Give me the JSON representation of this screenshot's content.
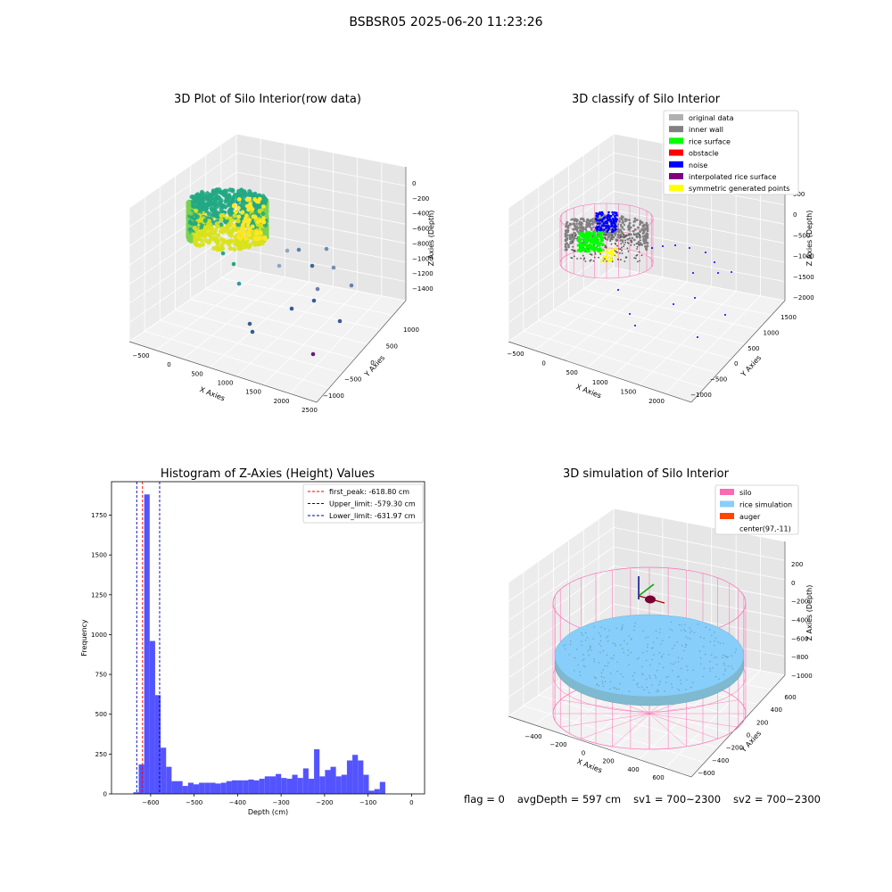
{
  "figure_title": "BSBSR05 2025-06-20 11:23:26",
  "footer": {
    "flag": "flag = 0",
    "avg_depth": "avgDepth = 597 cm",
    "sv1": "sv1 = 700~2300",
    "sv2": "sv2 = 700~2300"
  },
  "colors": {
    "histogram_bar": "#4b4bff",
    "peak_line": "#ff0000",
    "limit_line": "#0000aa",
    "silo_wire": "#ff69b4",
    "rice": "#87cefa",
    "auger": "#ff4500",
    "original_data": "#b0b0b0",
    "inner_wall": "#808080",
    "rice_surface": "#00ff00",
    "obstacle": "#ff0000",
    "noise": "#0000ff",
    "interpolated": "#800080",
    "symmetric": "#ffff00"
  },
  "chart_data": [
    {
      "type": "scatter",
      "subtype": "3d",
      "title": "3D Plot of Silo Interior(row data)",
      "xlabel": "X Axies",
      "ylabel": "Y Axies",
      "zlabel": "Z Axies (Depth)",
      "x_ticks": [
        "−500",
        "0",
        "500",
        "1000",
        "1500",
        "2000",
        "2500"
      ],
      "y_ticks": [
        "−1000",
        "−500",
        "0",
        "500",
        "1000"
      ],
      "z_ticks": [
        "0",
        "−200",
        "−400",
        "−600",
        "−800",
        "−1000",
        "−1200",
        "−1400"
      ],
      "xlim": [
        -600,
        2500
      ],
      "ylim": [
        -1200,
        1200
      ],
      "zlim": [
        -1500,
        100
      ]
    },
    {
      "type": "scatter",
      "subtype": "3d",
      "title": "3D classify of Silo Interior",
      "xlabel": "X Axies",
      "ylabel": "Y Axies",
      "zlabel": "Z Axies (Depth)",
      "x_ticks": [
        "−500",
        "0",
        "500",
        "1000",
        "1500",
        "2000"
      ],
      "y_ticks": [
        "−1000",
        "−500",
        "0",
        "500",
        "1000",
        "1500"
      ],
      "z_ticks": [
        "500",
        "0",
        "−500",
        "−1000",
        "−1500",
        "−2000"
      ],
      "legend": [
        "original data",
        "inner wall",
        "rice surface",
        "obstacle",
        "noise",
        "interpolated rice surface",
        "symmetric generated points"
      ],
      "legend_position": "top-right"
    },
    {
      "type": "bar",
      "subtype": "histogram",
      "title": "Histogram of Z-Axies (Height) Values",
      "xlabel": "Depth (cm)",
      "ylabel": "Frequency",
      "xlim": [
        -690,
        30
      ],
      "ylim": [
        0,
        1960
      ],
      "x_ticks": [
        -600,
        -500,
        -400,
        -300,
        -200,
        -100,
        0
      ],
      "y_ticks": [
        0,
        250,
        500,
        750,
        1000,
        1250,
        1500,
        1750
      ],
      "bin_width": 12.6,
      "bin_start": -640,
      "counts": [
        10,
        185,
        1880,
        960,
        620,
        290,
        170,
        80,
        80,
        50,
        70,
        60,
        70,
        70,
        70,
        65,
        70,
        80,
        85,
        85,
        85,
        90,
        85,
        95,
        110,
        110,
        125,
        100,
        95,
        120,
        100,
        160,
        95,
        280,
        110,
        150,
        170,
        110,
        120,
        210,
        245,
        210,
        120,
        20,
        30,
        75
      ],
      "lines": [
        {
          "label": "first_peak: -618.80 cm",
          "x": -618.8,
          "style": "dashed",
          "color": "#ff0000"
        },
        {
          "label": "Upper_limit: -579.30 cm",
          "x": -579.3,
          "style": "dashed",
          "color": "#0000aa"
        },
        {
          "label": "Lower_limit: -631.97 cm",
          "x": -631.97,
          "style": "dashed",
          "color": "#0000aa"
        }
      ],
      "legend_position": "top-right"
    },
    {
      "type": "scatter",
      "subtype": "3d",
      "title": "3D simulation of Silo Interior",
      "xlabel": "X Axies",
      "ylabel": "Y Axies",
      "zlabel": "Z Axies (Depth)",
      "x_ticks": [
        "−400",
        "−200",
        "0",
        "200",
        "400",
        "600"
      ],
      "y_ticks": [
        "−600",
        "−400",
        "−200",
        "0",
        "200",
        "400",
        "600"
      ],
      "z_ticks": [
        "200",
        "0",
        "−200",
        "−400",
        "−600",
        "−800",
        "−1000"
      ],
      "legend": [
        "silo",
        "rice simulation",
        "auger",
        "center(97,-11)"
      ],
      "legend_position": "top-right"
    }
  ]
}
